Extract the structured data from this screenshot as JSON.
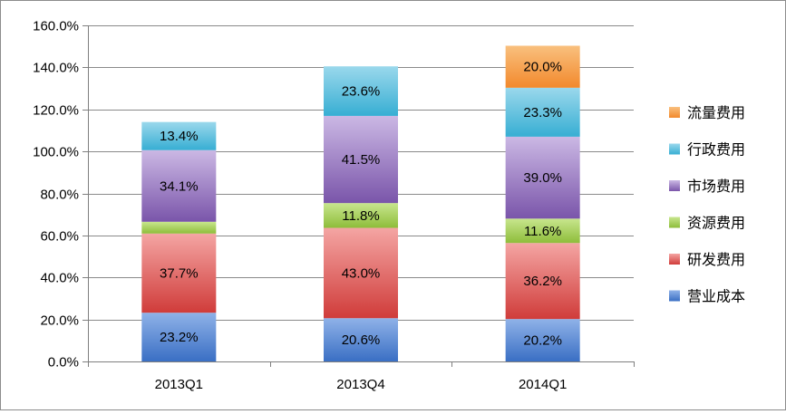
{
  "chart_data": {
    "type": "bar",
    "stacked": true,
    "categories": [
      "2013Q1",
      "2013Q4",
      "2014Q1"
    ],
    "ylim": [
      0,
      160
    ],
    "ytick_step": 20,
    "ytick_labels": [
      "0.0%",
      "20.0%",
      "40.0%",
      "60.0%",
      "80.0%",
      "100.0%",
      "120.0%",
      "140.0%",
      "160.0%"
    ],
    "grid": true,
    "legend_position": "right",
    "series": [
      {
        "name": "营业成本",
        "color_top": "#8fb2e8",
        "color_bottom": "#3a6fc4",
        "values": [
          23.2,
          20.6,
          20.2
        ],
        "labels": [
          "23.2%",
          "20.6%",
          "20.2%"
        ]
      },
      {
        "name": "研发费用",
        "color_top": "#f4a5a3",
        "color_bottom": "#d03c3a",
        "values": [
          37.7,
          43.0,
          36.2
        ],
        "labels": [
          "37.7%",
          "43.0%",
          "36.2%"
        ]
      },
      {
        "name": "资源费用",
        "color_top": "#c8e68e",
        "color_bottom": "#8ebd3a",
        "values": [
          5.6,
          11.8,
          11.6
        ],
        "labels": [
          "",
          "11.8%",
          "11.6%"
        ]
      },
      {
        "name": "市场费用",
        "color_top": "#cbb8e4",
        "color_bottom": "#7a55aa",
        "values": [
          34.1,
          41.5,
          39.0
        ],
        "labels": [
          "34.1%",
          "41.5%",
          "39.0%"
        ]
      },
      {
        "name": "行政费用",
        "color_top": "#9ad8ec",
        "color_bottom": "#37aed3",
        "values": [
          13.4,
          23.6,
          23.3
        ],
        "labels": [
          "13.4%",
          "23.6%",
          "23.3%"
        ]
      },
      {
        "name": "流量费用",
        "color_top": "#f9c07e",
        "color_bottom": "#f2892c",
        "values": [
          0,
          0,
          20.0
        ],
        "labels": [
          "",
          "",
          "20.0%"
        ]
      }
    ]
  }
}
